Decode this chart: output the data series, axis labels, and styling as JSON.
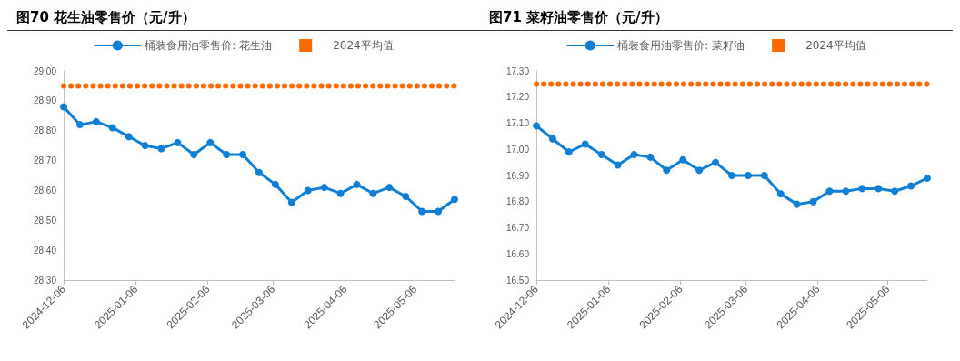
{
  "chart_data": [
    {
      "type": "line",
      "title": "图70 花生油零售价（元/升）",
      "x": [
        "2024-12-06",
        "2024-12-13",
        "2024-12-20",
        "2024-12-27",
        "2025-01-03",
        "2025-01-10",
        "2025-01-17",
        "2025-01-24",
        "2025-01-31",
        "2025-02-07",
        "2025-02-14",
        "2025-02-21",
        "2025-02-28",
        "2025-03-07",
        "2025-03-14",
        "2025-03-21",
        "2025-03-28",
        "2025-04-04",
        "2025-04-11",
        "2025-04-18",
        "2025-04-25",
        "2025-05-02",
        "2025-05-09",
        "2025-05-16",
        "2025-05-23"
      ],
      "series": [
        {
          "name": "桶装食用油零售价: 花生油",
          "color": "#0f7fd6",
          "marker": "circle",
          "line_style": "solid",
          "values": [
            28.88,
            28.82,
            28.83,
            28.81,
            28.78,
            28.75,
            28.74,
            28.76,
            28.72,
            28.76,
            28.72,
            28.72,
            28.66,
            28.62,
            28.56,
            28.6,
            28.61,
            28.59,
            28.62,
            28.59,
            28.61,
            28.58,
            28.53,
            28.53,
            28.57
          ]
        },
        {
          "name": "2024平均值",
          "color": "#ff6a00",
          "marker": "none",
          "line_style": "dotted",
          "values": [
            28.95,
            28.95,
            28.95,
            28.95,
            28.95,
            28.95,
            28.95,
            28.95,
            28.95,
            28.95,
            28.95,
            28.95,
            28.95,
            28.95,
            28.95,
            28.95,
            28.95,
            28.95,
            28.95,
            28.95,
            28.95,
            28.95,
            28.95,
            28.95,
            28.95
          ]
        }
      ],
      "xlim": [
        "2024-12-06",
        "2025-05-23"
      ],
      "xticks": [
        "2024-12-06",
        "2025-01-06",
        "2025-02-06",
        "2025-03-06",
        "2025-04-06",
        "2025-05-06"
      ],
      "ylim": [
        28.3,
        29.0
      ],
      "yticks": [
        {
          "value": 28.3,
          "label": "28.30"
        },
        {
          "value": 28.4,
          "label": "28.40"
        },
        {
          "value": 28.5,
          "label": "28.50"
        },
        {
          "value": 28.6,
          "label": "28.60"
        },
        {
          "value": 28.7,
          "label": "28.70"
        },
        {
          "value": 28.8,
          "label": "28.80"
        },
        {
          "value": 28.9,
          "label": "28.90"
        },
        {
          "value": 29.0,
          "label": "29.00"
        }
      ],
      "grid": false,
      "legend": "top"
    },
    {
      "type": "line",
      "title": "图71 菜籽油零售价（元/升）",
      "x": [
        "2024-12-06",
        "2024-12-13",
        "2024-12-20",
        "2024-12-27",
        "2025-01-03",
        "2025-01-10",
        "2025-01-17",
        "2025-01-24",
        "2025-01-31",
        "2025-02-07",
        "2025-02-14",
        "2025-02-21",
        "2025-02-28",
        "2025-03-07",
        "2025-03-14",
        "2025-03-21",
        "2025-03-28",
        "2025-04-04",
        "2025-04-11",
        "2025-04-18",
        "2025-04-25",
        "2025-05-02",
        "2025-05-09",
        "2025-05-16",
        "2025-05-23"
      ],
      "series": [
        {
          "name": "桶装食用油零售价: 菜籽油",
          "color": "#0f7fd6",
          "marker": "circle",
          "line_style": "solid",
          "values": [
            17.09,
            17.04,
            16.99,
            17.02,
            16.98,
            16.94,
            16.98,
            16.97,
            16.92,
            16.96,
            16.92,
            16.95,
            16.9,
            16.9,
            16.9,
            16.83,
            16.79,
            16.8,
            16.84,
            16.84,
            16.85,
            16.85,
            16.84,
            16.86,
            16.89
          ]
        },
        {
          "name": "2024平均值",
          "color": "#ff6a00",
          "marker": "none",
          "line_style": "dotted",
          "values": [
            17.25,
            17.25,
            17.25,
            17.25,
            17.25,
            17.25,
            17.25,
            17.25,
            17.25,
            17.25,
            17.25,
            17.25,
            17.25,
            17.25,
            17.25,
            17.25,
            17.25,
            17.25,
            17.25,
            17.25,
            17.25,
            17.25,
            17.25,
            17.25,
            17.25
          ]
        }
      ],
      "xlim": [
        "2024-12-06",
        "2025-05-23"
      ],
      "xticks": [
        "2024-12-06",
        "2025-01-06",
        "2025-02-06",
        "2025-03-06",
        "2025-04-06",
        "2025-05-06"
      ],
      "ylim": [
        16.5,
        17.3
      ],
      "yticks": [
        {
          "value": 16.5,
          "label": "16.50"
        },
        {
          "value": 16.6,
          "label": "16.60"
        },
        {
          "value": 16.7,
          "label": "16.70"
        },
        {
          "value": 16.8,
          "label": "16.80"
        },
        {
          "value": 16.9,
          "label": "16.90"
        },
        {
          "value": 17.0,
          "label": "17.00"
        },
        {
          "value": 17.1,
          "label": "17.10"
        },
        {
          "value": 17.2,
          "label": "17.20"
        },
        {
          "value": 17.3,
          "label": "17.30"
        }
      ],
      "grid": false,
      "legend": "top"
    }
  ]
}
